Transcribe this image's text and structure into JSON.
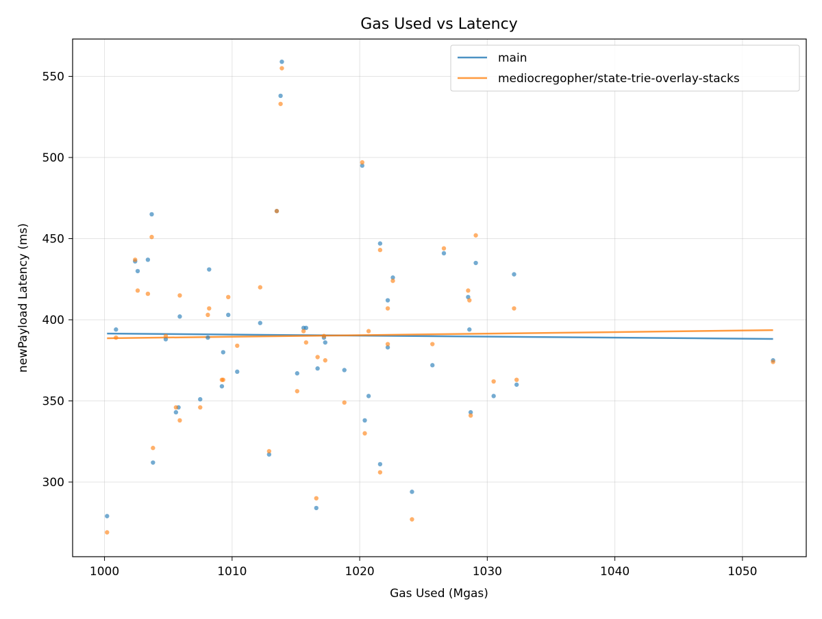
{
  "chart_data": {
    "type": "scatter",
    "title": "Gas Used vs Latency",
    "xlabel": "Gas Used (Mgas)",
    "ylabel": "newPayload Latency (ms)",
    "xlim": [
      997.5,
      1055
    ],
    "ylim": [
      254,
      573
    ],
    "xticks": [
      1000,
      1010,
      1020,
      1030,
      1040,
      1050
    ],
    "yticks": [
      300,
      350,
      400,
      450,
      500,
      550
    ],
    "grid": true,
    "legend_position": "top-right",
    "series": [
      {
        "name": "main",
        "color": "#1f77b4",
        "trend": [
          [
            1000.2,
            391.5
          ],
          [
            1052.4,
            388.2
          ]
        ],
        "points": [
          [
            1000.2,
            279
          ],
          [
            1000.9,
            394
          ],
          [
            1002.4,
            436
          ],
          [
            1002.6,
            430
          ],
          [
            1003.4,
            437
          ],
          [
            1003.7,
            465
          ],
          [
            1003.8,
            312
          ],
          [
            1004.8,
            388
          ],
          [
            1005.6,
            343
          ],
          [
            1005.8,
            346
          ],
          [
            1005.9,
            402
          ],
          [
            1007.5,
            351
          ],
          [
            1008.1,
            389
          ],
          [
            1008.2,
            431
          ],
          [
            1009.2,
            359
          ],
          [
            1009.3,
            380
          ],
          [
            1009.7,
            403
          ],
          [
            1010.4,
            368
          ],
          [
            1012.2,
            398
          ],
          [
            1012.9,
            317
          ],
          [
            1013.5,
            467
          ],
          [
            1013.8,
            538
          ],
          [
            1013.9,
            559
          ],
          [
            1015.1,
            367
          ],
          [
            1015.6,
            395
          ],
          [
            1015.8,
            395
          ],
          [
            1016.6,
            284
          ],
          [
            1016.7,
            370
          ],
          [
            1017.2,
            389
          ],
          [
            1017.3,
            386
          ],
          [
            1018.8,
            369
          ],
          [
            1020.2,
            495
          ],
          [
            1020.4,
            338
          ],
          [
            1020.7,
            353
          ],
          [
            1021.6,
            311
          ],
          [
            1021.6,
            447
          ],
          [
            1022.2,
            383
          ],
          [
            1022.2,
            412
          ],
          [
            1022.6,
            426
          ],
          [
            1024.1,
            294
          ],
          [
            1025.7,
            372
          ],
          [
            1026.6,
            441
          ],
          [
            1028.5,
            414
          ],
          [
            1028.6,
            394
          ],
          [
            1028.7,
            343
          ],
          [
            1029.1,
            435
          ],
          [
            1030.5,
            353
          ],
          [
            1032.1,
            428
          ],
          [
            1032.3,
            360
          ],
          [
            1052.4,
            375
          ]
        ]
      },
      {
        "name": "mediocregopher/state-trie-overlay-stacks",
        "color": "#ff7f0e",
        "trend": [
          [
            1000.2,
            388.6
          ],
          [
            1052.4,
            393.6
          ]
        ],
        "points": [
          [
            1000.2,
            269
          ],
          [
            1000.9,
            389
          ],
          [
            1002.4,
            437
          ],
          [
            1002.6,
            418
          ],
          [
            1003.4,
            416
          ],
          [
            1003.7,
            451
          ],
          [
            1003.8,
            321
          ],
          [
            1004.8,
            390
          ],
          [
            1005.6,
            346
          ],
          [
            1005.9,
            338
          ],
          [
            1005.9,
            415
          ],
          [
            1007.5,
            346
          ],
          [
            1008.1,
            403
          ],
          [
            1008.2,
            407
          ],
          [
            1009.2,
            363
          ],
          [
            1009.3,
            363
          ],
          [
            1009.7,
            414
          ],
          [
            1010.4,
            384
          ],
          [
            1012.2,
            420
          ],
          [
            1012.9,
            319
          ],
          [
            1013.5,
            467
          ],
          [
            1013.8,
            533
          ],
          [
            1013.9,
            555
          ],
          [
            1015.1,
            356
          ],
          [
            1015.6,
            393
          ],
          [
            1015.8,
            386
          ],
          [
            1016.6,
            290
          ],
          [
            1016.7,
            377
          ],
          [
            1017.2,
            390
          ],
          [
            1017.3,
            375
          ],
          [
            1018.8,
            349
          ],
          [
            1020.2,
            497
          ],
          [
            1020.4,
            330
          ],
          [
            1020.7,
            393
          ],
          [
            1021.6,
            306
          ],
          [
            1021.6,
            443
          ],
          [
            1022.2,
            385
          ],
          [
            1022.2,
            407
          ],
          [
            1022.6,
            424
          ],
          [
            1024.1,
            277
          ],
          [
            1025.7,
            385
          ],
          [
            1026.6,
            444
          ],
          [
            1028.5,
            418
          ],
          [
            1028.6,
            412
          ],
          [
            1028.7,
            341
          ],
          [
            1029.1,
            452
          ],
          [
            1030.5,
            362
          ],
          [
            1032.1,
            407
          ],
          [
            1032.3,
            363
          ],
          [
            1052.4,
            374
          ]
        ]
      }
    ]
  }
}
